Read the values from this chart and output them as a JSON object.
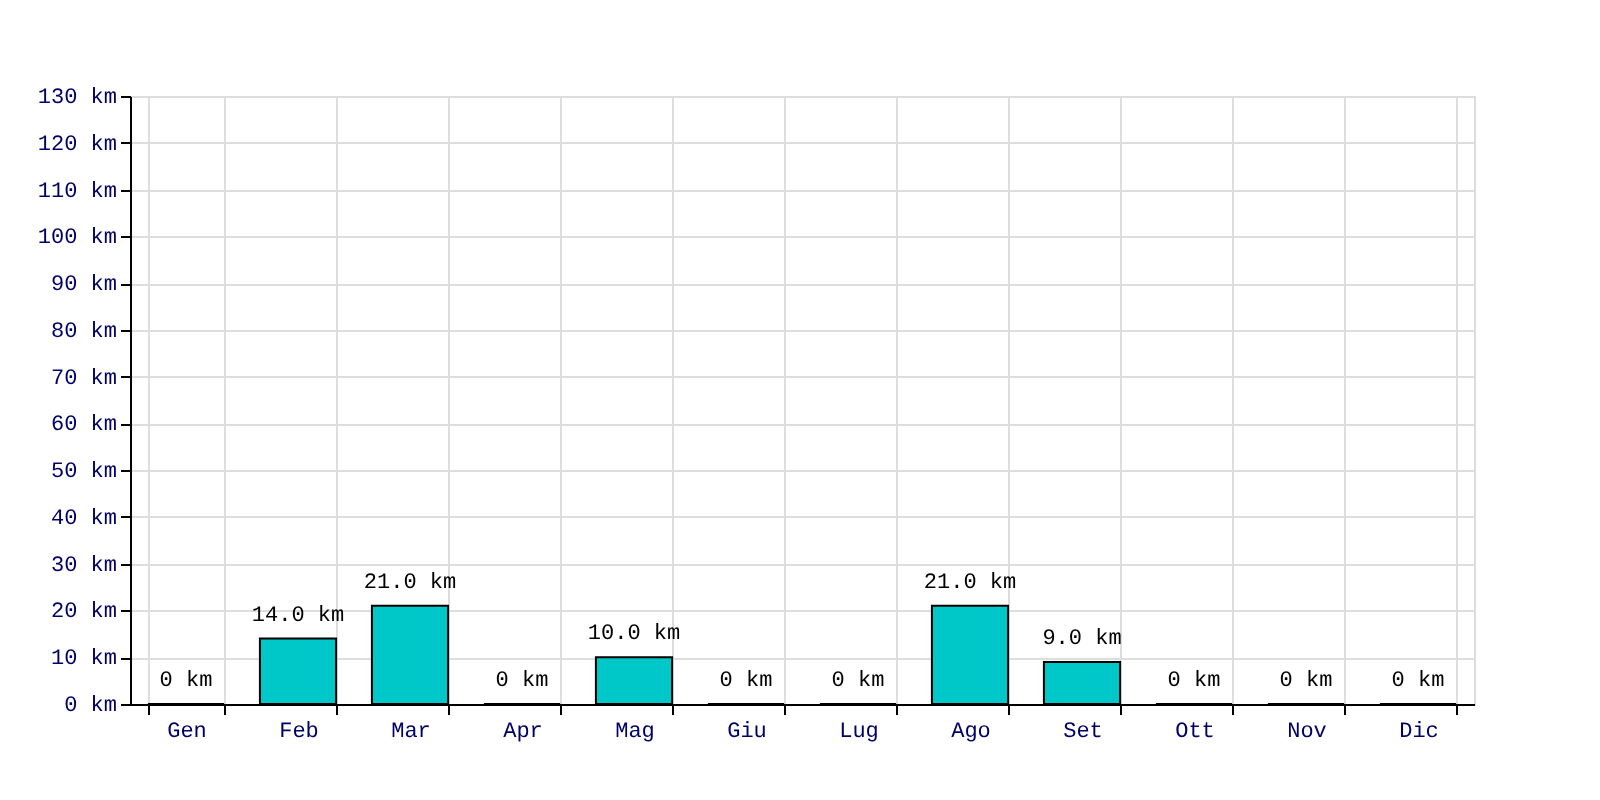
{
  "chart_data": {
    "type": "bar",
    "categories": [
      "Gen",
      "Feb",
      "Mar",
      "Apr",
      "Mag",
      "Giu",
      "Lug",
      "Ago",
      "Set",
      "Ott",
      "Nov",
      "Dic"
    ],
    "values": [
      0,
      14,
      21,
      0,
      10,
      0,
      0,
      21,
      9,
      0,
      0,
      0
    ],
    "value_labels": [
      "0 km",
      "14.0 km",
      "21.0 km",
      "0 km",
      "10.0 km",
      "0 km",
      "0 km",
      "21.0 km",
      "9.0 km",
      "0 km",
      "0 km",
      "0 km"
    ],
    "color": "#00c8c8",
    "ylim": [
      0,
      130
    ],
    "yticks": [
      {
        "value": 0,
        "label": "0 km"
      },
      {
        "value": 10,
        "label": "10 km"
      },
      {
        "value": 20,
        "label": "20 km"
      },
      {
        "value": 30,
        "label": "30 km"
      },
      {
        "value": 40,
        "label": "40 km"
      },
      {
        "value": 50,
        "label": "50 km"
      },
      {
        "value": 60,
        "label": "60 km"
      },
      {
        "value": 70,
        "label": "70 km"
      },
      {
        "value": 80,
        "label": "80 km"
      },
      {
        "value": 90,
        "label": "90 km"
      },
      {
        "value": 100,
        "label": "100 km"
      },
      {
        "value": 110,
        "label": "110 km"
      },
      {
        "value": 120,
        "label": "120 km"
      },
      {
        "value": 130,
        "label": "130 km"
      }
    ],
    "grid": true
  }
}
